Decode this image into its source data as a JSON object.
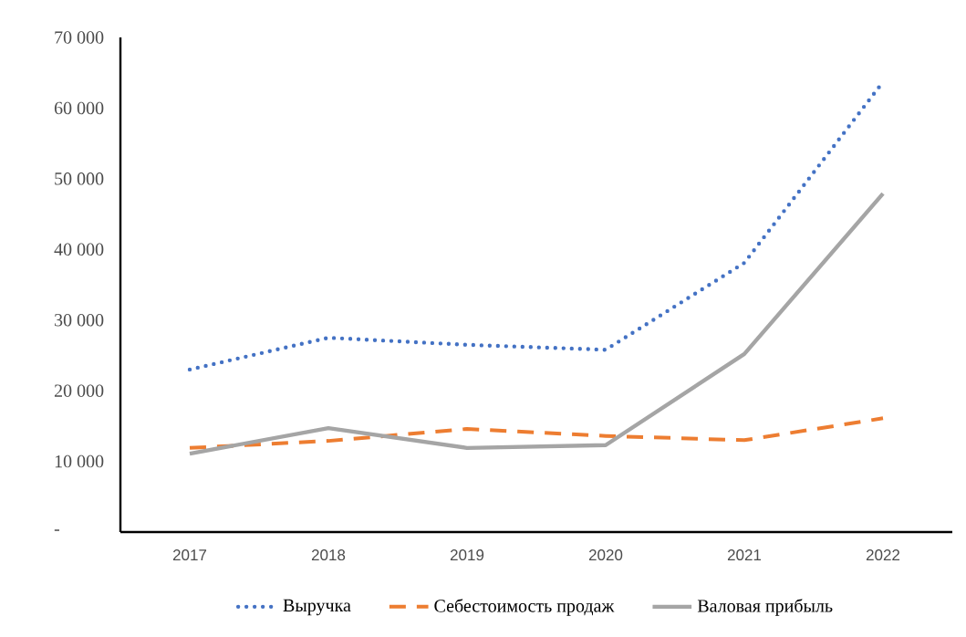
{
  "chart_data": {
    "type": "line",
    "categories": [
      "2017",
      "2018",
      "2019",
      "2020",
      "2021",
      "2022"
    ],
    "series": [
      {
        "name": "Выручка",
        "color": "#4472c4",
        "line_style": "dotted",
        "values": [
          23000,
          27500,
          26500,
          25800,
          38100,
          63700
        ]
      },
      {
        "name": "Себестоимость продаж",
        "color": "#ed7d31",
        "line_style": "dashed",
        "values": [
          11900,
          12900,
          14600,
          13600,
          13000,
          16100
        ]
      },
      {
        "name": "Валовая прибыль",
        "color": "#a5a5a5",
        "line_style": "solid",
        "values": [
          11100,
          14700,
          11900,
          12300,
          25200,
          47900
        ]
      }
    ],
    "ylim": [
      0,
      70000
    ],
    "yticks": [
      {
        "value": 0,
        "label": "-"
      },
      {
        "value": 10000,
        "label": "10 000"
      },
      {
        "value": 20000,
        "label": "20 000"
      },
      {
        "value": 30000,
        "label": "30 000"
      },
      {
        "value": 40000,
        "label": "40 000"
      },
      {
        "value": 50000,
        "label": "50 000"
      },
      {
        "value": 60000,
        "label": "60 000"
      },
      {
        "value": 70000,
        "label": "70 000"
      }
    ],
    "grid": false,
    "legend": "bottom",
    "marker": "none"
  }
}
